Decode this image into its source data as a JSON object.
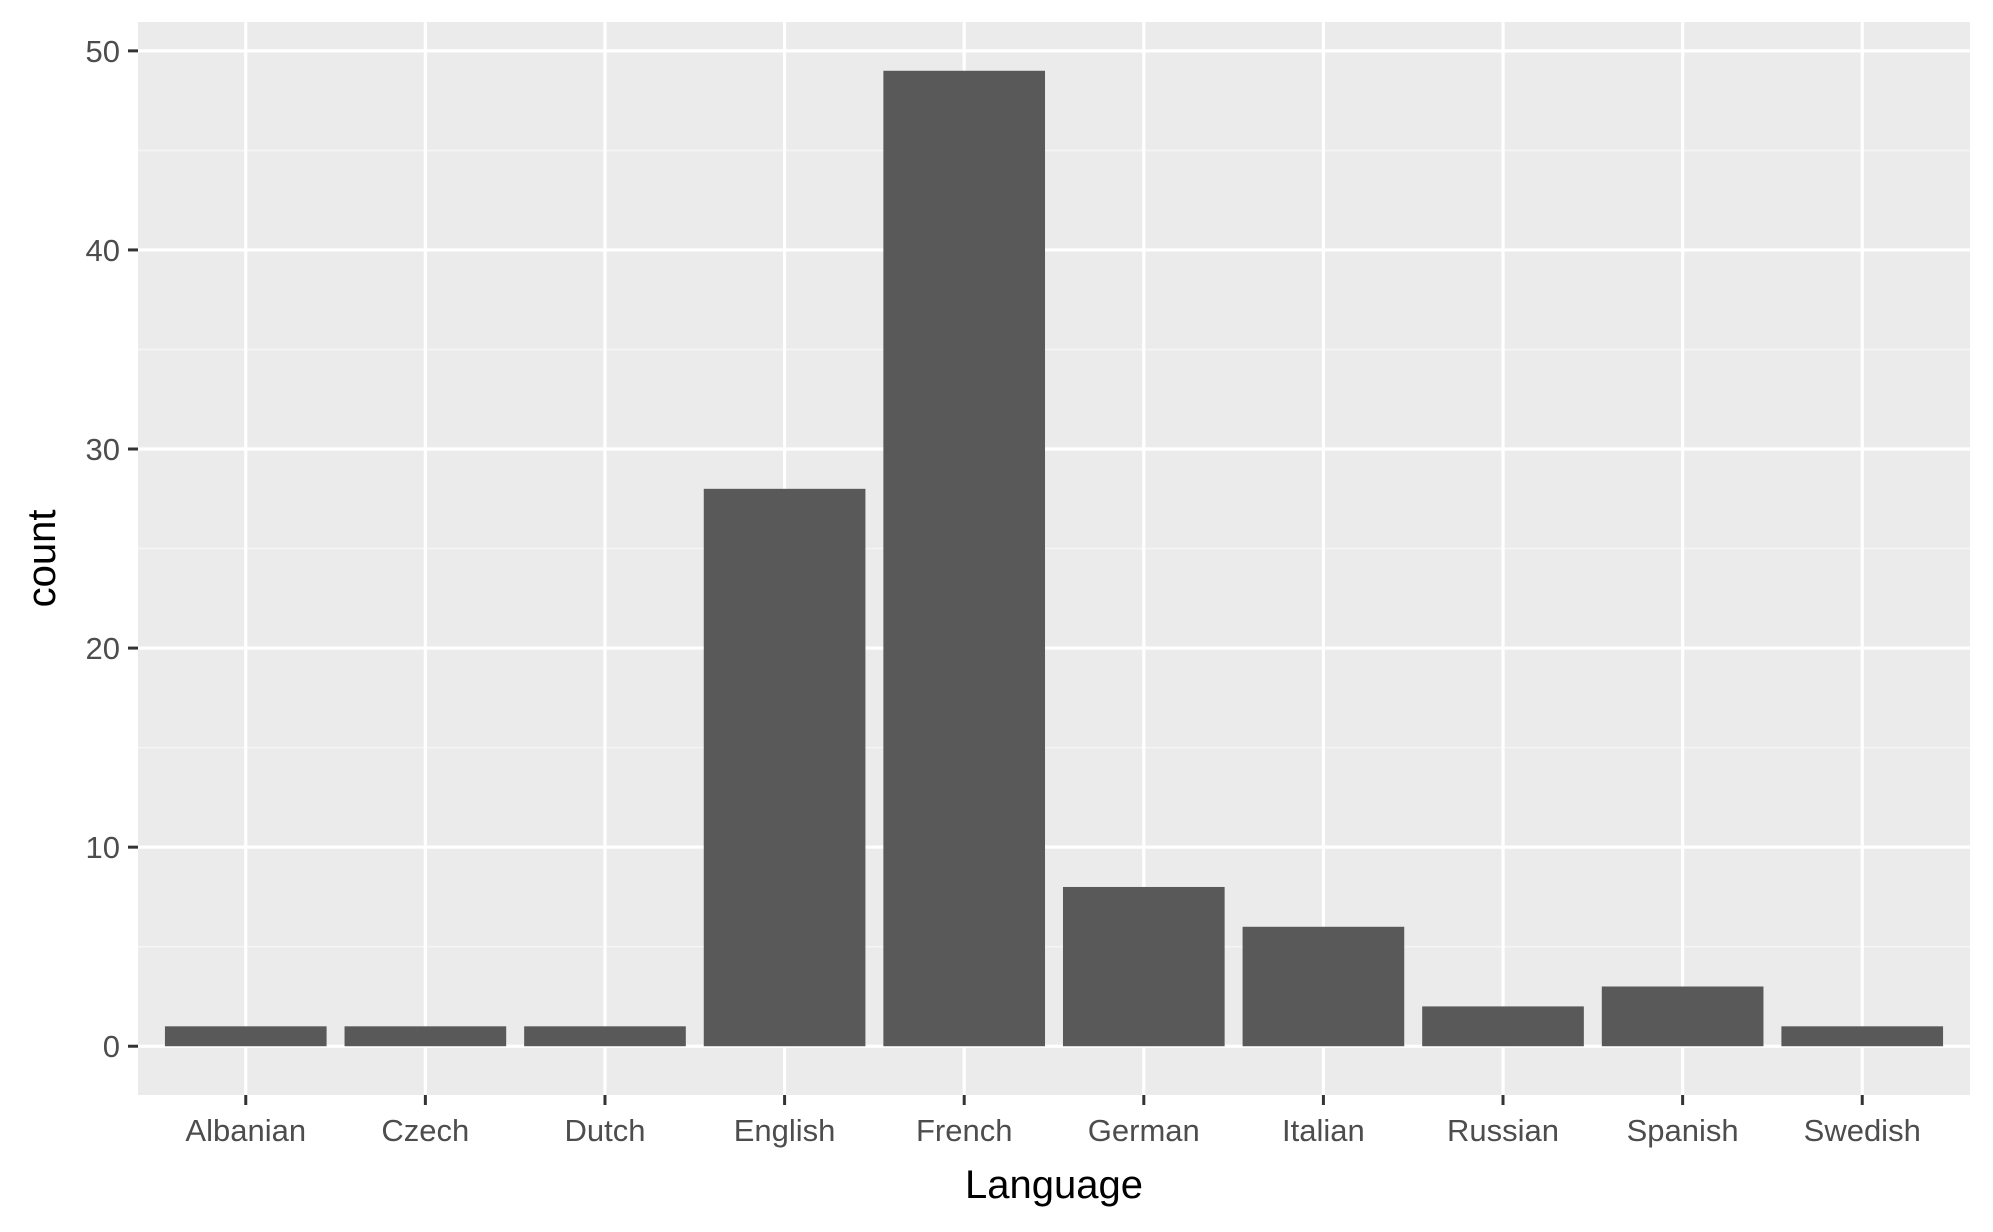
{
  "chart_data": {
    "type": "bar",
    "categories": [
      "Albanian",
      "Czech",
      "Dutch",
      "English",
      "French",
      "German",
      "Italian",
      "Russian",
      "Spanish",
      "Swedish"
    ],
    "values": [
      1,
      1,
      1,
      28,
      49,
      8,
      6,
      2,
      3,
      1
    ],
    "xlabel": "Language",
    "ylabel": "count",
    "ylim": [
      -2.45,
      51.45
    ],
    "yticks": [
      0,
      10,
      20,
      30,
      40,
      50
    ],
    "yticks_minor": [
      5,
      15,
      25,
      35,
      45
    ],
    "grid": true,
    "legend": "none",
    "colors": {
      "bar": "#595959",
      "panel": "#ebebeb",
      "grid_major": "#ffffff",
      "grid_minor": "#f5f5f5",
      "tick": "#333333",
      "tick_label": "#4d4d4d",
      "axis_title": "#000000"
    }
  }
}
